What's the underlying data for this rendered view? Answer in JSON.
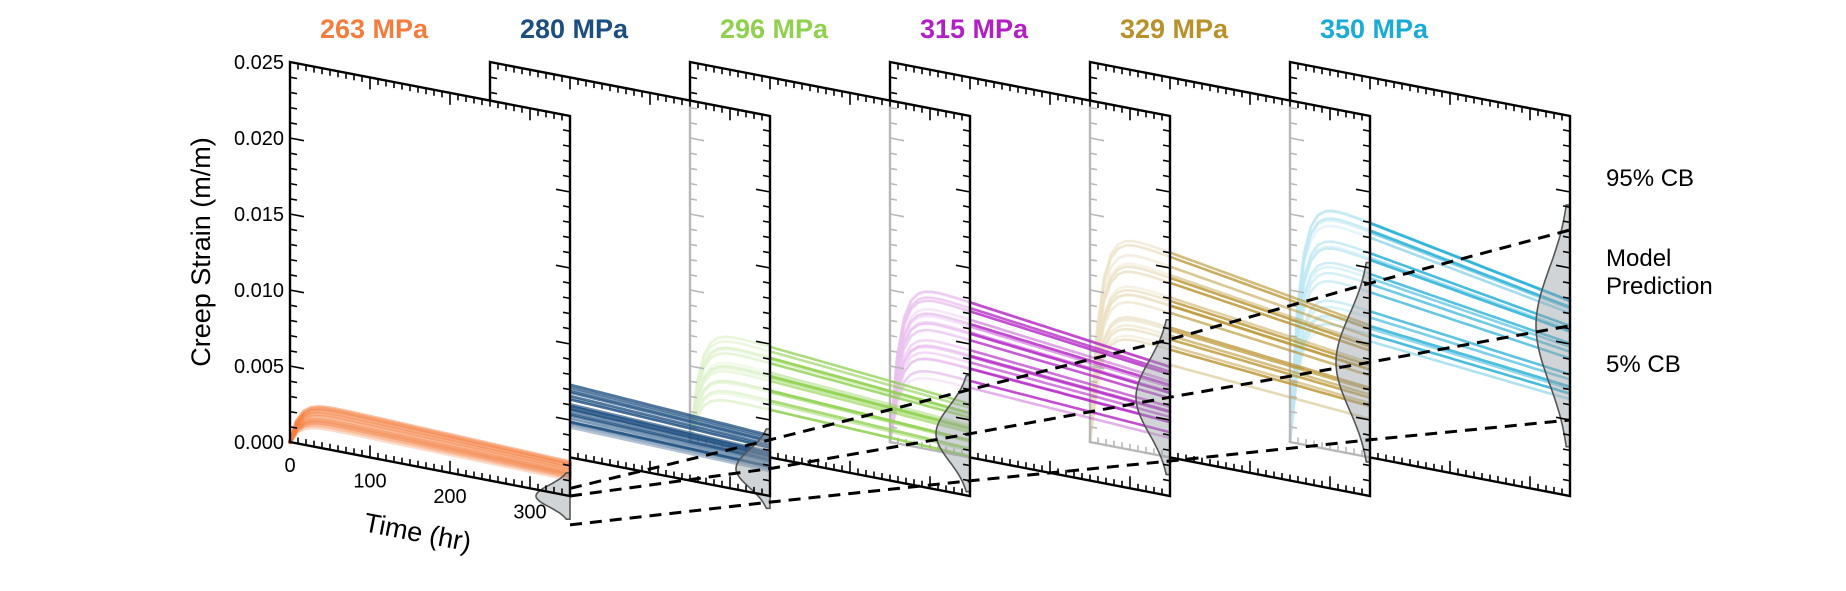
{
  "chart_data": {
    "type": "line",
    "title": "",
    "xlabel": "Time (hr)",
    "ylabel": "Creep Strain (m/m)",
    "xlim": [
      0,
      350
    ],
    "ylim": [
      0,
      0.025
    ],
    "x_ticks": [
      "0",
      "100",
      "200",
      "300"
    ],
    "y_ticks": [
      "0.000",
      "0.005",
      "0.010",
      "0.015",
      "0.020",
      "0.025"
    ],
    "panels": [
      {
        "stress": "263 MPa",
        "color": "#F47C3C",
        "strain_center": 0.0022,
        "strain_spread": 0.0007,
        "curves": 20
      },
      {
        "stress": "280 MPa",
        "color": "#1C4E80",
        "strain_center": 0.0036,
        "strain_spread": 0.0014,
        "curves": 22
      },
      {
        "stress": "296 MPa",
        "color": "#8FD14F",
        "strain_center": 0.0055,
        "strain_spread": 0.0022,
        "curves": 18
      },
      {
        "stress": "315 MPa",
        "color": "#B21FC4",
        "strain_center": 0.0082,
        "strain_spread": 0.003,
        "curves": 18
      },
      {
        "stress": "329 MPa",
        "color": "#B8912A",
        "strain_center": 0.0105,
        "strain_spread": 0.0036,
        "curves": 18
      },
      {
        "stress": "350 MPa",
        "color": "#1AABD6",
        "strain_center": 0.0125,
        "strain_spread": 0.0045,
        "curves": 18
      }
    ],
    "bands": {
      "upper": {
        "label": "95% CB",
        "values": [
          0.0005,
          0.0037,
          0.007,
          0.0103,
          0.014,
          0.0175
        ]
      },
      "median": {
        "label": "Model Prediction",
        "values": [
          0.0,
          0.0018,
          0.0041,
          0.0065,
          0.0088,
          0.0112
        ]
      },
      "lower": {
        "label": "5% CB",
        "values": [
          -0.0019,
          -0.0004,
          0.001,
          0.0023,
          0.0037,
          0.005
        ]
      }
    }
  },
  "annotations": {
    "upper_label": "95% CB",
    "model_label_line1": "Model",
    "model_label_line2": "Prediction",
    "lower_label": "5% CB"
  }
}
